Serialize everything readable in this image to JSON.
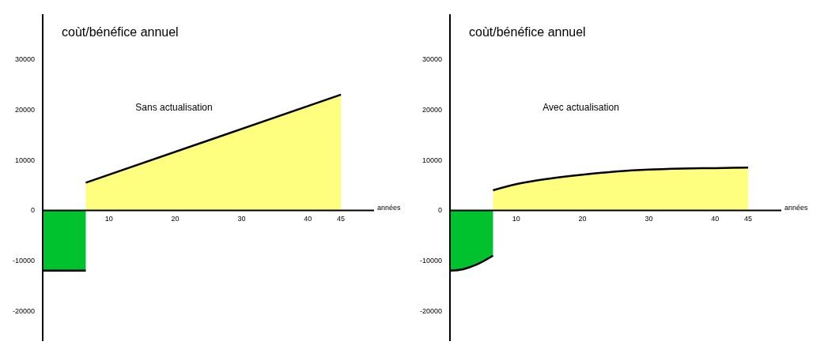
{
  "chart_data": [
    {
      "type": "area",
      "title": "coùt/bénéfice annuel",
      "xlabel": "années",
      "annotations": [
        "Sans actualisation"
      ],
      "xlim": [
        0,
        50
      ],
      "xticks": [
        10,
        20,
        30,
        40,
        45
      ],
      "ylim": [
        -26000,
        39000
      ],
      "yticks": [
        -20000,
        -10000,
        0,
        10000,
        20000,
        30000
      ],
      "grid": false,
      "legend": false,
      "series": [
        {
          "color": "#00c12e",
          "x": [
            0,
            6.5
          ],
          "values": [
            -12000,
            -12000
          ]
        },
        {
          "color": "#ffff7f",
          "x": [
            6.5,
            45
          ],
          "values": [
            5500,
            23000
          ]
        }
      ]
    },
    {
      "type": "area",
      "title": "coùt/bénéfice annuel",
      "xlabel": "années",
      "annotations": [
        "Avec actualisation"
      ],
      "xlim": [
        0,
        50
      ],
      "xticks": [
        10,
        20,
        30,
        40,
        45
      ],
      "ylim": [
        -26000,
        39000
      ],
      "yticks": [
        -20000,
        -10000,
        0,
        10000,
        20000,
        30000
      ],
      "grid": false,
      "legend": false,
      "series": [
        {
          "color": "#00c12e",
          "x": [
            0,
            2,
            4,
            6.5
          ],
          "values": [
            -12000,
            -11700,
            -10800,
            -9000
          ]
        },
        {
          "color": "#ffff7f",
          "x": [
            6.5,
            10,
            15,
            20,
            25,
            30,
            35,
            40,
            45
          ],
          "values": [
            4000,
            5200,
            6300,
            7100,
            7700,
            8100,
            8300,
            8400,
            8500
          ]
        }
      ]
    }
  ]
}
